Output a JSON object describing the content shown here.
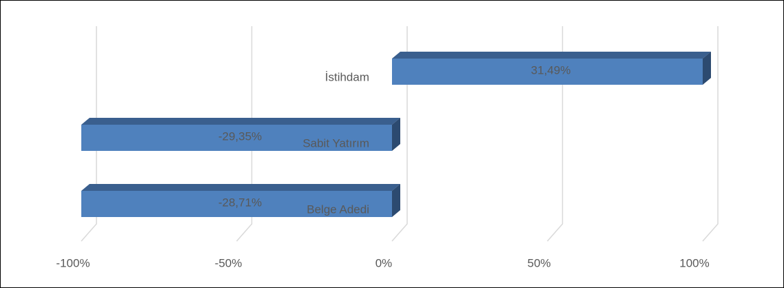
{
  "chart_data": {
    "type": "bar",
    "orientation": "horizontal",
    "stacked_percent": true,
    "three_d": true,
    "categories": [
      "İstihdam",
      "Sabit Yatırım",
      "Belge Adedi"
    ],
    "values": [
      31.49,
      -29.35,
      -28.71
    ],
    "value_labels": [
      "31,49%",
      "-29,35%",
      "-28,71%"
    ],
    "color": "#4f81bd",
    "xlim": [
      -100,
      100
    ],
    "xticks": [
      {
        "value": -100,
        "label": "-100%"
      },
      {
        "value": -50,
        "label": "-50%"
      },
      {
        "value": 0,
        "label": "0%"
      },
      {
        "value": 50,
        "label": "50%"
      },
      {
        "value": 100,
        "label": "100%"
      }
    ],
    "grid": true
  }
}
